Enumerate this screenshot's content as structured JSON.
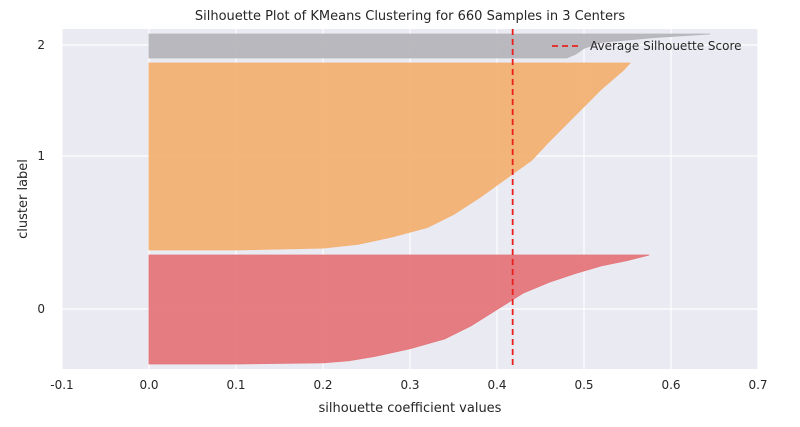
{
  "chart_data": {
    "type": "area",
    "title": "Silhouette Plot of KMeans Clustering for 660 Samples in 3 Centers",
    "xlabel": "silhouette coefficient values",
    "ylabel": "cluster label",
    "xlim": [
      -0.1,
      0.7
    ],
    "xticks": [
      "-0.1",
      "0.0",
      "0.1",
      "0.2",
      "0.3",
      "0.4",
      "0.5",
      "0.6",
      "0.7"
    ],
    "yticks": [
      "0",
      "1",
      "2"
    ],
    "grid": true,
    "legend_position": "top-right",
    "average_silhouette_score": 0.418,
    "average_line": {
      "label": "Average Silhouette Score",
      "color": "#e8211d",
      "style": "dashed"
    },
    "series": [
      {
        "cluster": "0",
        "color": "#e4767a",
        "profile": [
          [
            0.575,
            0.0
          ],
          [
            0.55,
            0.05
          ],
          [
            0.52,
            0.1
          ],
          [
            0.49,
            0.17
          ],
          [
            0.46,
            0.25
          ],
          [
            0.43,
            0.35
          ],
          [
            0.4,
            0.5
          ],
          [
            0.37,
            0.65
          ],
          [
            0.34,
            0.77
          ],
          [
            0.3,
            0.86
          ],
          [
            0.26,
            0.93
          ],
          [
            0.23,
            0.97
          ],
          [
            0.2,
            0.99
          ],
          [
            0.1,
            1.0
          ],
          [
            0.01,
            1.0
          ]
        ]
      },
      {
        "cluster": "1",
        "color": "#f3b173",
        "profile": [
          [
            0.553,
            0.0
          ],
          [
            0.545,
            0.04
          ],
          [
            0.52,
            0.14
          ],
          [
            0.49,
            0.28
          ],
          [
            0.46,
            0.42
          ],
          [
            0.44,
            0.52
          ],
          [
            0.41,
            0.62
          ],
          [
            0.38,
            0.72
          ],
          [
            0.35,
            0.81
          ],
          [
            0.32,
            0.88
          ],
          [
            0.28,
            0.93
          ],
          [
            0.24,
            0.97
          ],
          [
            0.2,
            0.99
          ],
          [
            0.1,
            1.0
          ],
          [
            0.01,
            1.0
          ]
        ]
      },
      {
        "cluster": "2",
        "color": "#b5b5bb",
        "profile": [
          [
            0.645,
            0.0
          ],
          [
            0.58,
            0.15
          ],
          [
            0.52,
            0.35
          ],
          [
            0.5,
            0.6
          ],
          [
            0.49,
            0.85
          ],
          [
            0.48,
            1.0
          ]
        ]
      }
    ]
  }
}
